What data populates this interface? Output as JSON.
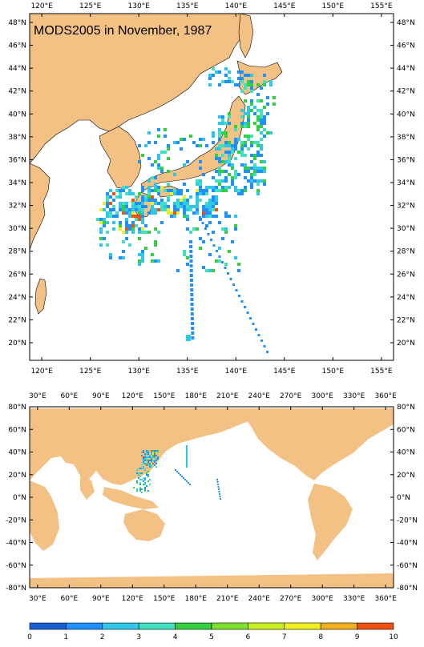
{
  "title": "MODS2005 in November, 1987",
  "top_map": {
    "x_ticks": [
      "120°E",
      "125°E",
      "130°E",
      "135°E",
      "140°E",
      "145°E",
      "150°E",
      "155°E"
    ],
    "y_ticks": [
      "48°N",
      "46°N",
      "44°N",
      "42°N",
      "40°N",
      "38°N",
      "36°N",
      "34°N",
      "32°N",
      "30°N",
      "28°N",
      "26°N",
      "24°N",
      "22°N",
      "20°N"
    ]
  },
  "bottom_map": {
    "x_ticks": [
      "30°E",
      "60°E",
      "90°E",
      "120°E",
      "150°E",
      "180°E",
      "210°E",
      "240°E",
      "270°E",
      "300°E",
      "330°E",
      "360°E"
    ],
    "y_ticks": [
      "80°N",
      "60°N",
      "40°N",
      "20°N",
      "0°N",
      "-20°N",
      "-40°N",
      "-60°N",
      "-80°N"
    ]
  },
  "colorbar": {
    "labels": [
      "0",
      "1",
      "2",
      "3",
      "4",
      "5",
      "6",
      "7",
      "8",
      "9",
      "10"
    ],
    "colors": [
      "#1a5fd6",
      "#1e90ff",
      "#30c8e8",
      "#40e0c0",
      "#30d040",
      "#80e030",
      "#c8f020",
      "#f0f020",
      "#f0b020",
      "#f05010"
    ]
  },
  "colors": {
    "land": "#f4c184",
    "coast": "#000000",
    "ocean": "#ffffff"
  }
}
